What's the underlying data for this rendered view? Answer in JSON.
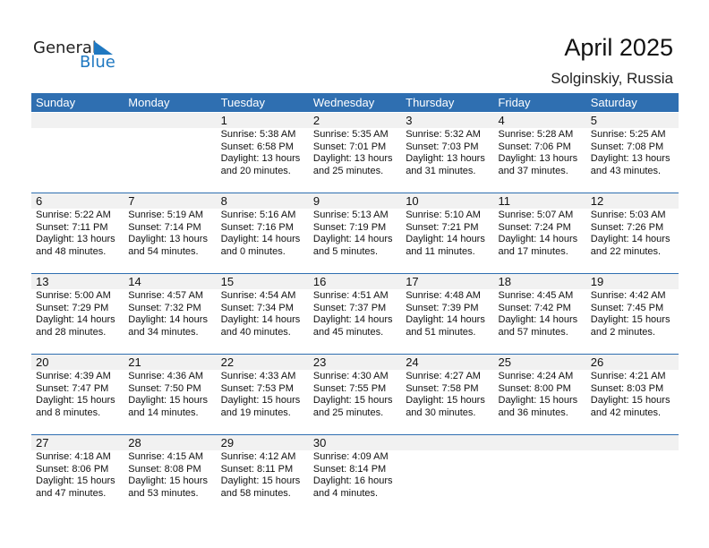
{
  "logo": {
    "text1": "General",
    "text2": "Blue"
  },
  "title": "April 2025",
  "location": "Solginskiy, Russia",
  "colors": {
    "header": "#2f6fb1",
    "band": "#f1f1f1",
    "logo_blue": "#1f78c1"
  },
  "days": [
    "Sunday",
    "Monday",
    "Tuesday",
    "Wednesday",
    "Thursday",
    "Friday",
    "Saturday"
  ],
  "weeks": [
    [
      null,
      null,
      {
        "day": "1",
        "sunrise": "Sunrise: 5:38 AM",
        "sunset": "Sunset: 6:58 PM",
        "daylight": "Daylight: 13 hours",
        "minutes": "and 20 minutes."
      },
      {
        "day": "2",
        "sunrise": "Sunrise: 5:35 AM",
        "sunset": "Sunset: 7:01 PM",
        "daylight": "Daylight: 13 hours",
        "minutes": "and 25 minutes."
      },
      {
        "day": "3",
        "sunrise": "Sunrise: 5:32 AM",
        "sunset": "Sunset: 7:03 PM",
        "daylight": "Daylight: 13 hours",
        "minutes": "and 31 minutes."
      },
      {
        "day": "4",
        "sunrise": "Sunrise: 5:28 AM",
        "sunset": "Sunset: 7:06 PM",
        "daylight": "Daylight: 13 hours",
        "minutes": "and 37 minutes."
      },
      {
        "day": "5",
        "sunrise": "Sunrise: 5:25 AM",
        "sunset": "Sunset: 7:08 PM",
        "daylight": "Daylight: 13 hours",
        "minutes": "and 43 minutes."
      }
    ],
    [
      {
        "day": "6",
        "sunrise": "Sunrise: 5:22 AM",
        "sunset": "Sunset: 7:11 PM",
        "daylight": "Daylight: 13 hours",
        "minutes": "and 48 minutes."
      },
      {
        "day": "7",
        "sunrise": "Sunrise: 5:19 AM",
        "sunset": "Sunset: 7:14 PM",
        "daylight": "Daylight: 13 hours",
        "minutes": "and 54 minutes."
      },
      {
        "day": "8",
        "sunrise": "Sunrise: 5:16 AM",
        "sunset": "Sunset: 7:16 PM",
        "daylight": "Daylight: 14 hours",
        "minutes": "and 0 minutes."
      },
      {
        "day": "9",
        "sunrise": "Sunrise: 5:13 AM",
        "sunset": "Sunset: 7:19 PM",
        "daylight": "Daylight: 14 hours",
        "minutes": "and 5 minutes."
      },
      {
        "day": "10",
        "sunrise": "Sunrise: 5:10 AM",
        "sunset": "Sunset: 7:21 PM",
        "daylight": "Daylight: 14 hours",
        "minutes": "and 11 minutes."
      },
      {
        "day": "11",
        "sunrise": "Sunrise: 5:07 AM",
        "sunset": "Sunset: 7:24 PM",
        "daylight": "Daylight: 14 hours",
        "minutes": "and 17 minutes."
      },
      {
        "day": "12",
        "sunrise": "Sunrise: 5:03 AM",
        "sunset": "Sunset: 7:26 PM",
        "daylight": "Daylight: 14 hours",
        "minutes": "and 22 minutes."
      }
    ],
    [
      {
        "day": "13",
        "sunrise": "Sunrise: 5:00 AM",
        "sunset": "Sunset: 7:29 PM",
        "daylight": "Daylight: 14 hours",
        "minutes": "and 28 minutes."
      },
      {
        "day": "14",
        "sunrise": "Sunrise: 4:57 AM",
        "sunset": "Sunset: 7:32 PM",
        "daylight": "Daylight: 14 hours",
        "minutes": "and 34 minutes."
      },
      {
        "day": "15",
        "sunrise": "Sunrise: 4:54 AM",
        "sunset": "Sunset: 7:34 PM",
        "daylight": "Daylight: 14 hours",
        "minutes": "and 40 minutes."
      },
      {
        "day": "16",
        "sunrise": "Sunrise: 4:51 AM",
        "sunset": "Sunset: 7:37 PM",
        "daylight": "Daylight: 14 hours",
        "minutes": "and 45 minutes."
      },
      {
        "day": "17",
        "sunrise": "Sunrise: 4:48 AM",
        "sunset": "Sunset: 7:39 PM",
        "daylight": "Daylight: 14 hours",
        "minutes": "and 51 minutes."
      },
      {
        "day": "18",
        "sunrise": "Sunrise: 4:45 AM",
        "sunset": "Sunset: 7:42 PM",
        "daylight": "Daylight: 14 hours",
        "minutes": "and 57 minutes."
      },
      {
        "day": "19",
        "sunrise": "Sunrise: 4:42 AM",
        "sunset": "Sunset: 7:45 PM",
        "daylight": "Daylight: 15 hours",
        "minutes": "and 2 minutes."
      }
    ],
    [
      {
        "day": "20",
        "sunrise": "Sunrise: 4:39 AM",
        "sunset": "Sunset: 7:47 PM",
        "daylight": "Daylight: 15 hours",
        "minutes": "and 8 minutes."
      },
      {
        "day": "21",
        "sunrise": "Sunrise: 4:36 AM",
        "sunset": "Sunset: 7:50 PM",
        "daylight": "Daylight: 15 hours",
        "minutes": "and 14 minutes."
      },
      {
        "day": "22",
        "sunrise": "Sunrise: 4:33 AM",
        "sunset": "Sunset: 7:53 PM",
        "daylight": "Daylight: 15 hours",
        "minutes": "and 19 minutes."
      },
      {
        "day": "23",
        "sunrise": "Sunrise: 4:30 AM",
        "sunset": "Sunset: 7:55 PM",
        "daylight": "Daylight: 15 hours",
        "minutes": "and 25 minutes."
      },
      {
        "day": "24",
        "sunrise": "Sunrise: 4:27 AM",
        "sunset": "Sunset: 7:58 PM",
        "daylight": "Daylight: 15 hours",
        "minutes": "and 30 minutes."
      },
      {
        "day": "25",
        "sunrise": "Sunrise: 4:24 AM",
        "sunset": "Sunset: 8:00 PM",
        "daylight": "Daylight: 15 hours",
        "minutes": "and 36 minutes."
      },
      {
        "day": "26",
        "sunrise": "Sunrise: 4:21 AM",
        "sunset": "Sunset: 8:03 PM",
        "daylight": "Daylight: 15 hours",
        "minutes": "and 42 minutes."
      }
    ],
    [
      {
        "day": "27",
        "sunrise": "Sunrise: 4:18 AM",
        "sunset": "Sunset: 8:06 PM",
        "daylight": "Daylight: 15 hours",
        "minutes": "and 47 minutes."
      },
      {
        "day": "28",
        "sunrise": "Sunrise: 4:15 AM",
        "sunset": "Sunset: 8:08 PM",
        "daylight": "Daylight: 15 hours",
        "minutes": "and 53 minutes."
      },
      {
        "day": "29",
        "sunrise": "Sunrise: 4:12 AM",
        "sunset": "Sunset: 8:11 PM",
        "daylight": "Daylight: 15 hours",
        "minutes": "and 58 minutes."
      },
      {
        "day": "30",
        "sunrise": "Sunrise: 4:09 AM",
        "sunset": "Sunset: 8:14 PM",
        "daylight": "Daylight: 16 hours",
        "minutes": "and 4 minutes."
      },
      null,
      null,
      null
    ]
  ]
}
